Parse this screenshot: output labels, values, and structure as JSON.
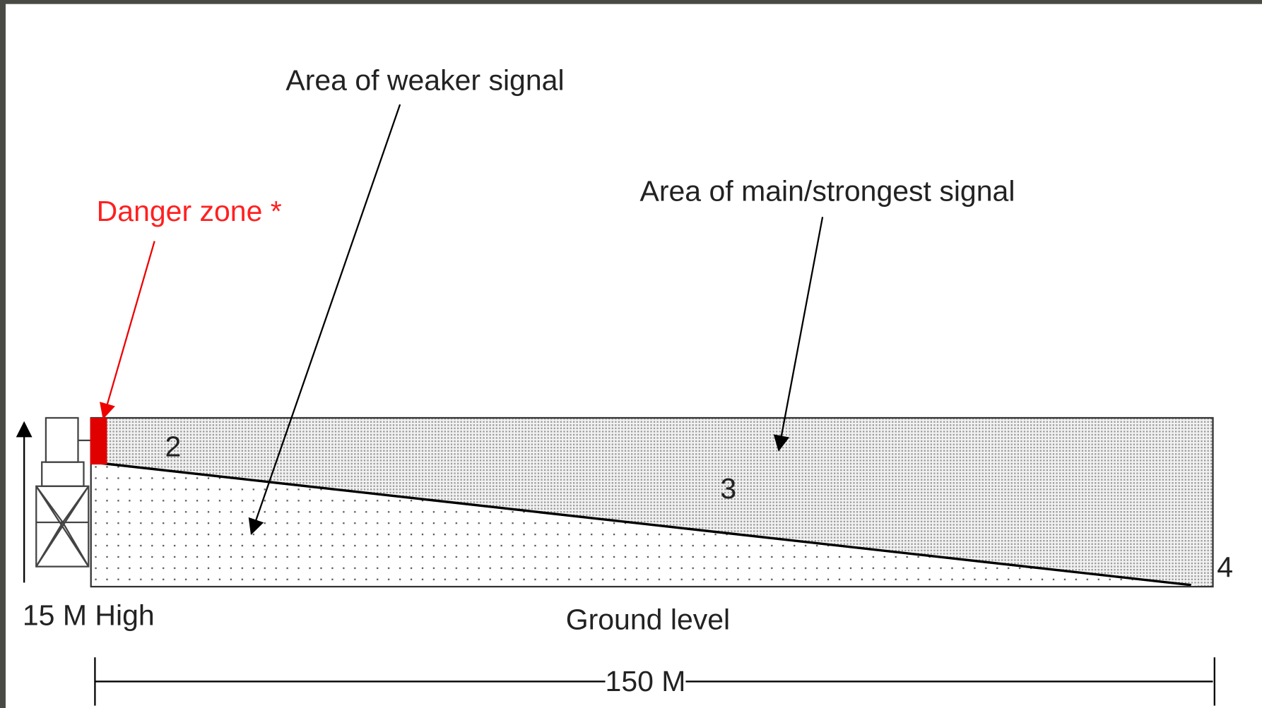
{
  "labels": {
    "weaker": "Area of weaker signal",
    "main": "Area of main/strongest signal",
    "danger": "Danger zone *",
    "zone2": "2",
    "zone3": "3",
    "zone4": "4",
    "height": "15 M High",
    "ground": "Ground level",
    "distance": "150 M"
  }
}
